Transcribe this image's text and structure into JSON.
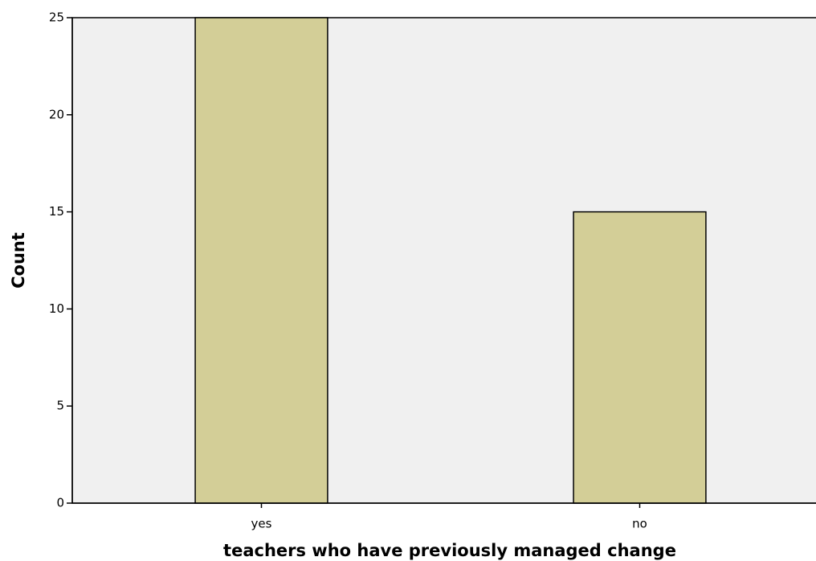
{
  "chart_data": {
    "type": "bar",
    "categories": [
      "yes",
      "no"
    ],
    "values": [
      25,
      15
    ],
    "color": "#d3ce97",
    "xlabel": "teachers who have previously managed change",
    "ylabel": "Count",
    "ylim": [
      0,
      25
    ],
    "yticks": [
      0,
      5,
      10,
      15,
      20,
      25
    ]
  }
}
